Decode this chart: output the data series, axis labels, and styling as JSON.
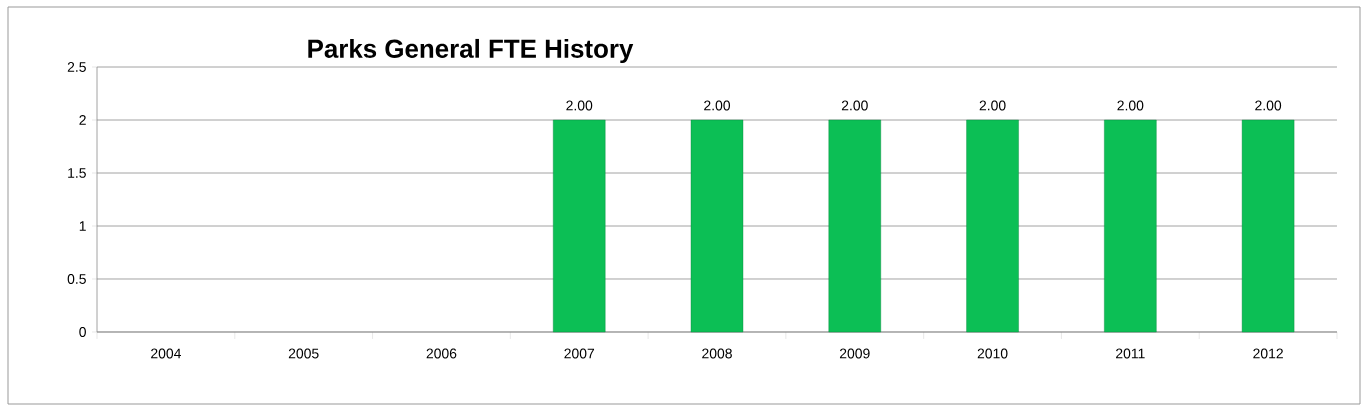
{
  "chart_data": {
    "type": "bar",
    "title": "Parks General FTE History",
    "categories": [
      "2004",
      "2005",
      "2006",
      "2007",
      "2008",
      "2009",
      "2010",
      "2011",
      "2012"
    ],
    "values": [
      null,
      null,
      null,
      2,
      2,
      2,
      2,
      2,
      2
    ],
    "value_labels": [
      null,
      null,
      null,
      "2.00",
      "2.00",
      "2.00",
      "2.00",
      "2.00",
      "2.00"
    ],
    "color": "#0cbf55",
    "ylim": [
      0,
      2.5
    ],
    "yticks": [
      0,
      0.5,
      1,
      1.5,
      2,
      2.5
    ],
    "grid": "y"
  }
}
